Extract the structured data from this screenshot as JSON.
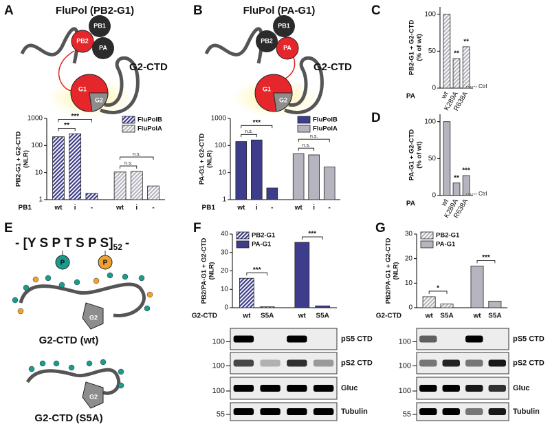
{
  "chart_data": [
    {
      "type": "bar",
      "yscale": "log",
      "ylabel": [
        "PB2-G1 + G2-CTD",
        "(NLR)"
      ],
      "xlabel": "PB1",
      "categories": [
        "wt",
        "i",
        "-"
      ],
      "series": [
        {
          "name": "FluPolB",
          "color": "#3d3d8c",
          "hatch": true,
          "values": [
            210,
            270,
            1.7
          ]
        },
        {
          "name": "FluPolA",
          "color": "#b6b4be",
          "hatch": true,
          "values": [
            10.5,
            11,
            3.2
          ]
        }
      ],
      "ylim": [
        1,
        1000
      ],
      "yticks": [
        1,
        10,
        100,
        1000
      ],
      "legend": "upper right",
      "annotations": [
        "***",
        "**",
        "n.s.",
        "n.s."
      ]
    },
    {
      "type": "bar",
      "yscale": "log",
      "ylabel": [
        "PA-G1 + G2-CTD",
        "(NLR)"
      ],
      "xlabel": "PB1",
      "categories": [
        "wt",
        "i",
        "-"
      ],
      "series": [
        {
          "name": "FluPolB",
          "color": "#3d3d8c",
          "hatch": false,
          "values": [
            140,
            160,
            2.7
          ]
        },
        {
          "name": "FluPolA",
          "color": "#b6b4be",
          "hatch": false,
          "values": [
            50,
            45,
            16
          ]
        }
      ],
      "ylim": [
        1,
        1000
      ],
      "yticks": [
        1,
        10,
        100,
        1000
      ],
      "legend": "upper right",
      "annotations": [
        "***",
        "n.s.",
        "n.s.",
        "n.s."
      ]
    },
    {
      "type": "bar",
      "ylabel": [
        "PB2-G1 + G2-CTD",
        "(% of wt)"
      ],
      "xlabel": "PA",
      "categories": [
        "wt",
        "K289A",
        "R638A"
      ],
      "series": [
        {
          "color": "#b6b4be",
          "hatch": true,
          "values": [
            100,
            40,
            56
          ]
        }
      ],
      "ylim": [
        0,
        110
      ],
      "yticks": [
        0,
        50,
        100
      ],
      "xtick_rotation": -60,
      "reference": {
        "label": "Ctrl",
        "value": 2
      },
      "annotations": [
        "**",
        "**"
      ]
    },
    {
      "type": "bar",
      "ylabel": [
        "PA-G1 + G2-CTD",
        "(% of wt)"
      ],
      "xlabel": "PA",
      "categories": [
        "wt",
        "K289A",
        "R638A"
      ],
      "series": [
        {
          "color": "#b6b4be",
          "hatch": false,
          "values": [
            100,
            17,
            27
          ]
        }
      ],
      "ylim": [
        0,
        110
      ],
      "yticks": [
        0,
        50,
        100
      ],
      "xtick_rotation": -60,
      "reference": {
        "label": "Ctrl",
        "value": 2
      },
      "annotations": [
        "**",
        "***"
      ]
    },
    {
      "type": "bar",
      "ylabel": [
        "PB2/PA-G1 + G2-CTD",
        "(NLR)"
      ],
      "xlabel": "G2-CTD",
      "categories": [
        "wt",
        "S5A"
      ],
      "series": [
        {
          "name": "PB2-G1",
          "color": "#3d3d8c",
          "hatch": true,
          "values": [
            16,
            0.5
          ]
        },
        {
          "name": "PA-G1",
          "color": "#3d3d8c",
          "hatch": false,
          "values": [
            35.5,
            1
          ]
        }
      ],
      "ylim": [
        0,
        40
      ],
      "yticks": [
        0,
        10,
        20,
        30,
        40
      ],
      "legend": "upper left",
      "annotations": [
        "***",
        "***"
      ]
    },
    {
      "type": "bar",
      "ylabel": [
        "PB2/PA-G1 + G2-CTD",
        "(NLR)"
      ],
      "xlabel": "G2-CTD",
      "categories": [
        "wt",
        "S5A"
      ],
      "series": [
        {
          "name": "PB2-G1",
          "color": "#b6b4be",
          "hatch": true,
          "values": [
            4.5,
            1.5
          ]
        },
        {
          "name": "PA-G1",
          "color": "#b6b4be",
          "hatch": false,
          "values": [
            17,
            2.7
          ]
        }
      ],
      "ylim": [
        0,
        30
      ],
      "yticks": [
        0,
        10,
        20,
        30
      ],
      "legend": "upper left",
      "annotations": [
        "*",
        "***"
      ]
    }
  ],
  "panels": {
    "A": {
      "letter": "A",
      "title": "FluPol (PB2-G1)",
      "subunits": [
        "PB1",
        "PB2",
        "PA"
      ],
      "domains": [
        "G1",
        "G2"
      ],
      "label": "G2-CTD"
    },
    "B": {
      "letter": "B",
      "title": "FluPol (PA-G1)",
      "subunits": [
        "PB1",
        "PB2",
        "PA"
      ],
      "domains": [
        "G1",
        "G2"
      ],
      "label": "G2-CTD"
    },
    "C": {
      "letter": "C"
    },
    "D": {
      "letter": "D"
    },
    "E": {
      "letter": "E",
      "sequence": "- [Y S P T S P S]",
      "repeat": "52",
      "tail": "-",
      "phospho": "P",
      "domain": "G2",
      "wt_label": "G2-CTD (wt)",
      "s5a_label": "G2-CTD (S5A)"
    },
    "F": {
      "letter": "F",
      "blot": {
        "rows": [
          "pS5 CTD",
          "pS2 CTD",
          "Gluc",
          "Tubulin"
        ],
        "mw": [
          "100",
          "100",
          "100",
          "55"
        ]
      }
    },
    "G": {
      "letter": "G",
      "blot": {
        "rows": [
          "pS5 CTD",
          "pS2 CTD",
          "Gluc",
          "Tubulin"
        ],
        "mw": [
          "100",
          "100",
          "100",
          "55"
        ]
      }
    }
  }
}
